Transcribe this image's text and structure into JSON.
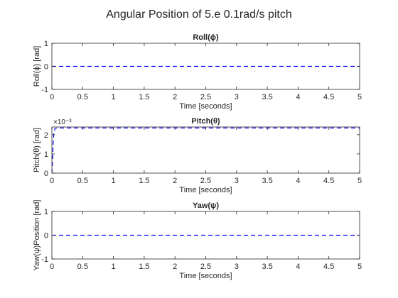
{
  "figure": {
    "title": "Angular Position of 5.e 0.1rad/s pitch"
  },
  "colors": {
    "axis": "#262626",
    "series": "#0000ff",
    "background": "#ffffff"
  },
  "chart_data": [
    {
      "type": "line",
      "title": "Roll(ϕ)",
      "xlabel": "Time [seconds]",
      "ylabel": "Roll(ϕ) [rad]",
      "xlim": [
        0,
        5
      ],
      "ylim": [
        -1,
        1
      ],
      "xticks": [
        0,
        0.5,
        1,
        1.5,
        2,
        2.5,
        3,
        3.5,
        4,
        4.5,
        5
      ],
      "xtick_labels": [
        "0",
        "0.5",
        "1",
        "1.5",
        "2",
        "2.5",
        "3",
        "3.5",
        "4",
        "4.5",
        "5"
      ],
      "yticks": [
        -1,
        0,
        1
      ],
      "ytick_labels": [
        "-1",
        "0",
        "1"
      ],
      "ytick_exponent": "",
      "grid": false,
      "series": [
        {
          "style": "dashed",
          "color": "#0000ff",
          "x": [
            0,
            5
          ],
          "y": [
            0,
            0
          ]
        }
      ]
    },
    {
      "type": "line",
      "title": "Pitch(θ)",
      "xlabel": "Time [seconds]",
      "ylabel": "Pitch(θ) [rad]",
      "xlim": [
        0,
        5
      ],
      "ylim": [
        0,
        0.0024
      ],
      "xticks": [
        0,
        0.5,
        1,
        1.5,
        2,
        2.5,
        3,
        3.5,
        4,
        4.5,
        5
      ],
      "xtick_labels": [
        "0",
        "0.5",
        "1",
        "1.5",
        "2",
        "2.5",
        "3",
        "3.5",
        "4",
        "4.5",
        "5"
      ],
      "yticks": [
        0,
        0.001,
        0.002
      ],
      "ytick_labels": [
        "0",
        "1",
        "2"
      ],
      "ytick_exponent": "×10⁻³",
      "grid": false,
      "series": [
        {
          "style": "dashed",
          "color": "#0000ff",
          "x": [
            0,
            0.01,
            0.02,
            0.03,
            0.05,
            0.08,
            5
          ],
          "y": [
            0,
            0.0006,
            0.0015,
            0.002,
            0.00232,
            0.00235,
            0.00235
          ]
        }
      ]
    },
    {
      "type": "line",
      "title": "Yaw(ψ)",
      "xlabel": "Time [seconds]",
      "ylabel": "Yaw(ψ)Position [rad]",
      "xlim": [
        0,
        5
      ],
      "ylim": [
        -1,
        1
      ],
      "xticks": [
        0,
        0.5,
        1,
        1.5,
        2,
        2.5,
        3,
        3.5,
        4,
        4.5,
        5
      ],
      "xtick_labels": [
        "0",
        "0.5",
        "1",
        "1.5",
        "2",
        "2.5",
        "3",
        "3.5",
        "4",
        "4.5",
        "5"
      ],
      "yticks": [
        -1,
        0,
        1
      ],
      "ytick_labels": [
        "-1",
        "0",
        "1"
      ],
      "ytick_exponent": "",
      "grid": false,
      "series": [
        {
          "style": "dashed",
          "color": "#0000ff",
          "x": [
            0,
            5
          ],
          "y": [
            0,
            0
          ]
        }
      ]
    }
  ]
}
